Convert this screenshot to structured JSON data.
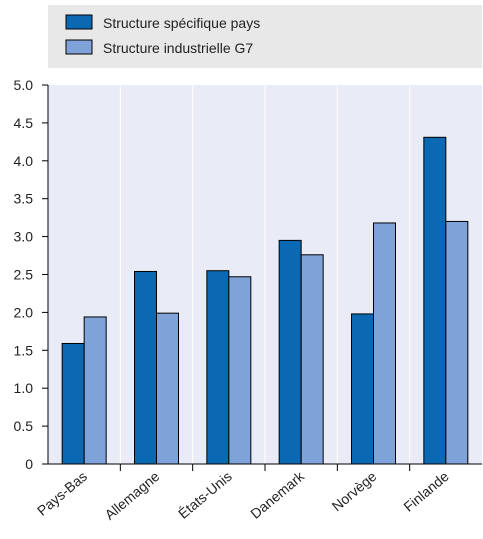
{
  "chart_data": {
    "type": "bar",
    "categories": [
      "Pays-Bas",
      "Allemagne",
      "États-Unis",
      "Danemark",
      "Norvège",
      "Finlande"
    ],
    "series": [
      {
        "name": "Structure spécifique pays",
        "values": [
          1.59,
          2.54,
          2.55,
          2.95,
          1.98,
          4.31
        ]
      },
      {
        "name": "Structure industrielle G7",
        "values": [
          1.94,
          1.99,
          2.47,
          2.76,
          3.18,
          3.2
        ]
      }
    ],
    "y_ticks": [
      "0",
      "0.5",
      "1.0",
      "1.5",
      "2.0",
      "2.5",
      "3.0",
      "3.5",
      "4.0",
      "4.5",
      "5.0"
    ],
    "ylim": [
      0,
      5
    ],
    "grid": "vertical",
    "legend_position": "top"
  },
  "colors": {
    "series1": "#0b69b3",
    "series2": "#7fa2d8",
    "plot_background": "#e9ecf6",
    "legend_background": "#e8e8e8",
    "grid": "#ffffff",
    "axis": "#000000"
  }
}
